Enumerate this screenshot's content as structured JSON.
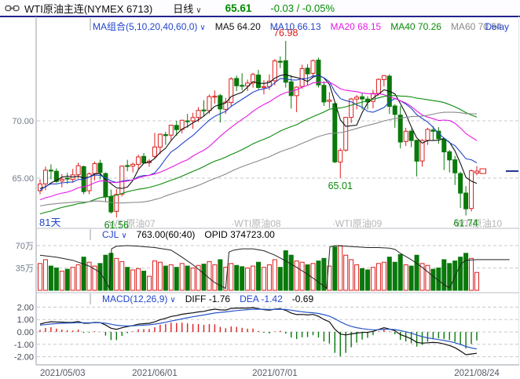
{
  "header": {
    "title": "WTI原油主连(NYMEX 6713)",
    "period": "日线",
    "price": "65.61",
    "change": "-0.03 / -0.05%"
  },
  "icons": {
    "chevron_down": "∨",
    "link": "link-icon"
  },
  "ma_bar": {
    "label": "MA组合(5,10,20,40,60,0)",
    "items": [
      {
        "label": "MA5 64.20",
        "color": "#111111"
      },
      {
        "label": "MA10 66.13",
        "color": "#2244cc"
      },
      {
        "label": "MA20 68.15",
        "color": "#e619e6"
      },
      {
        "label": "MA40 70.26",
        "color": "#0a8a0a"
      },
      {
        "label": "MA60 70.54",
        "color": "#8a8a8a"
      }
    ],
    "delay": "Delay"
  },
  "volume_bar": {
    "label": "CJL",
    "value": "763.00(60:40)",
    "opid": "OPID 374723.00"
  },
  "macd_bar": {
    "label": "MACD(12,26,9)",
    "diff": "DIFF -1.76",
    "dea": "DEA -1.42",
    "bar": "-0.69"
  },
  "chart_data": {
    "type": "candlestick+volume+macd",
    "title": "WTI原油主连(NYMEX 6713) 日线",
    "days_label": "81天",
    "x_ticks": [
      {
        "index": 0,
        "label": "2021/05/03",
        "align": "start"
      },
      {
        "index": 21,
        "label": "2021/06/01",
        "align": "middle"
      },
      {
        "index": 43,
        "label": "2021/07/01",
        "align": "middle"
      },
      {
        "index": 80,
        "label": "2021/08/24",
        "align": "middle"
      }
    ],
    "price_axis": [
      {
        "v": 70,
        "label": "70.00"
      },
      {
        "v": 65,
        "label": "65.00"
      }
    ],
    "volume_axis": [
      {
        "v": 70,
        "label": "70万"
      },
      {
        "v": 35,
        "label": "35万"
      }
    ],
    "macd_axis": [
      {
        "v": 2,
        "label": "2.00"
      },
      {
        "v": 1,
        "label": "1.00"
      },
      {
        "v": 0,
        "label": "0.00"
      },
      {
        "v": -1,
        "label": "-1.00"
      },
      {
        "v": -2,
        "label": "-2.00"
      }
    ],
    "annotations": [
      {
        "index": 45,
        "price": 76.98,
        "label": "76.98",
        "color": "#dc1e1e",
        "place": "above"
      },
      {
        "index": 55,
        "price": 65.01,
        "label": "65.01",
        "color": "#0a8a0a",
        "place": "below"
      },
      {
        "index": 14,
        "price": 61.56,
        "label": "61.56",
        "color": "#0a8a0a",
        "place": "below"
      },
      {
        "index": 78,
        "price": 61.74,
        "label": "61.74",
        "color": "#0a8a0a",
        "place": "below"
      }
    ],
    "watermarks": [
      {
        "index": 12,
        "text": "·WTI原油07"
      },
      {
        "index": 35,
        "text": "·WTI原油08"
      },
      {
        "index": 53.5,
        "text": "·WTI原油09"
      },
      {
        "index": 75.5,
        "text": "·WTI原油10"
      }
    ],
    "last_price": 65.61,
    "ma_lines": [
      {
        "period": 5,
        "color": "#111111"
      },
      {
        "period": 10,
        "color": "#2244cc"
      },
      {
        "period": 20,
        "color": "#e619e6"
      },
      {
        "period": 40,
        "color": "#0a8a0a"
      },
      {
        "period": 60,
        "color": "#8a8a8a"
      }
    ],
    "macd_params": {
      "fast": 12,
      "slow": 26,
      "signal": 9
    },
    "pre_closes": [
      60.0,
      60.7,
      61.5,
      62.1,
      61.8,
      62.5,
      63.2,
      63.5,
      65.2,
      63.7,
      62.6,
      66.0,
      66.5,
      65.8,
      66.4,
      66.1,
      64.6,
      64.8,
      66.0,
      64.6,
      61.6,
      60.0,
      61.4,
      57.8,
      59.2,
      60.5,
      61.4,
      60.9,
      61.5,
      60.6,
      59.3,
      58.7,
      61.4,
      59.6,
      60.0,
      59.3,
      60.2,
      61.4,
      63.1,
      63.5,
      63.1,
      62.1,
      63.4,
      61.4,
      62.4,
      63.1,
      62.2,
      61.4,
      62.1,
      63.0,
      61.9,
      62.1,
      63.5,
      64.7,
      63.9,
      64.5,
      65.0,
      63.9,
      63.6,
      63.5
    ],
    "ohlc": [
      [
        63.9,
        64.9,
        63.6,
        64.49
      ],
      [
        64.5,
        66.0,
        63.95,
        65.69
      ],
      [
        65.7,
        66.2,
        64.9,
        65.63
      ],
      [
        65.6,
        65.85,
        64.6,
        64.71
      ],
      [
        64.75,
        65.35,
        64.2,
        64.9
      ],
      [
        65.0,
        65.45,
        64.5,
        64.92
      ],
      [
        64.9,
        65.8,
        64.6,
        65.28
      ],
      [
        65.3,
        66.35,
        64.95,
        66.08
      ],
      [
        66.0,
        66.1,
        63.6,
        63.82
      ],
      [
        63.9,
        65.5,
        63.6,
        65.37
      ],
      [
        65.4,
        66.45,
        64.8,
        66.27
      ],
      [
        66.3,
        66.6,
        64.9,
        65.49
      ],
      [
        65.4,
        65.5,
        62.95,
        63.36
      ],
      [
        63.4,
        64.0,
        61.9,
        62.05
      ],
      [
        62.1,
        64.05,
        61.56,
        63.58
      ],
      [
        63.6,
        66.1,
        63.4,
        66.05
      ],
      [
        66.1,
        66.6,
        65.6,
        66.07
      ],
      [
        66.05,
        66.35,
        65.5,
        66.21
      ],
      [
        66.2,
        67.05,
        65.8,
        66.85
      ],
      [
        66.9,
        67.2,
        66.3,
        66.32
      ],
      [
        66.35,
        66.65,
        66.0,
        66.48
      ],
      [
        66.9,
        68.95,
        66.7,
        67.72
      ],
      [
        67.7,
        68.9,
        67.1,
        68.83
      ],
      [
        68.8,
        69.05,
        67.9,
        68.71
      ],
      [
        68.75,
        69.65,
        68.3,
        69.62
      ],
      [
        69.6,
        70.0,
        68.7,
        69.23
      ],
      [
        69.25,
        70.1,
        68.9,
        70.05
      ],
      [
        70.0,
        70.6,
        69.4,
        69.96
      ],
      [
        70.0,
        70.7,
        69.3,
        70.29
      ],
      [
        70.3,
        71.2,
        69.9,
        70.91
      ],
      [
        70.95,
        71.8,
        70.4,
        70.88
      ],
      [
        70.9,
        72.3,
        70.6,
        72.12
      ],
      [
        72.1,
        72.65,
        71.5,
        72.15
      ],
      [
        72.2,
        72.35,
        69.85,
        71.04
      ],
      [
        71.0,
        72.0,
        70.6,
        71.64
      ],
      [
        71.6,
        73.8,
        71.2,
        73.66
      ],
      [
        73.7,
        73.95,
        72.6,
        73.06
      ],
      [
        73.1,
        74.15,
        72.65,
        73.08
      ],
      [
        73.05,
        73.6,
        72.6,
        73.3
      ],
      [
        73.3,
        74.2,
        72.9,
        74.05
      ],
      [
        74.0,
        74.45,
        72.75,
        72.91
      ],
      [
        72.9,
        73.55,
        72.3,
        72.98
      ],
      [
        73.0,
        74.05,
        72.7,
        73.47
      ],
      [
        73.5,
        75.4,
        73.1,
        75.23
      ],
      [
        75.2,
        75.62,
        74.6,
        75.16
      ],
      [
        75.25,
        76.98,
        72.9,
        73.37
      ],
      [
        73.4,
        74.0,
        71.07,
        72.2
      ],
      [
        72.2,
        73.0,
        70.76,
        72.94
      ],
      [
        73.0,
        74.9,
        72.8,
        74.56
      ],
      [
        74.6,
        74.95,
        73.1,
        74.1
      ],
      [
        74.15,
        75.35,
        73.8,
        75.25
      ],
      [
        75.3,
        75.52,
        72.9,
        73.13
      ],
      [
        73.1,
        73.45,
        71.3,
        71.65
      ],
      [
        71.7,
        72.5,
        71.1,
        71.81
      ],
      [
        71.5,
        71.6,
        66.3,
        66.42
      ],
      [
        66.4,
        67.6,
        65.01,
        67.42
      ],
      [
        67.45,
        70.35,
        67.3,
        70.3
      ],
      [
        70.3,
        72.0,
        69.8,
        71.91
      ],
      [
        71.9,
        72.25,
        71.0,
        72.07
      ],
      [
        72.1,
        72.4,
        71.0,
        71.91
      ],
      [
        71.9,
        72.15,
        71.0,
        71.65
      ],
      [
        71.7,
        72.7,
        71.1,
        72.39
      ],
      [
        72.4,
        73.7,
        72.2,
        73.62
      ],
      [
        73.6,
        74.0,
        73.0,
        73.95
      ],
      [
        73.9,
        74.05,
        70.6,
        71.26
      ],
      [
        71.3,
        71.45,
        69.4,
        70.56
      ],
      [
        70.5,
        71.3,
        67.6,
        68.15
      ],
      [
        68.2,
        69.4,
        67.8,
        69.09
      ],
      [
        69.1,
        69.3,
        67.7,
        68.28
      ],
      [
        68.3,
        68.35,
        65.15,
        66.48
      ],
      [
        66.5,
        68.4,
        66.0,
        68.29
      ],
      [
        68.3,
        69.4,
        67.9,
        69.25
      ],
      [
        69.2,
        69.55,
        68.3,
        69.09
      ],
      [
        69.1,
        69.45,
        68.0,
        68.44
      ],
      [
        68.4,
        68.5,
        65.7,
        67.29
      ],
      [
        67.3,
        67.45,
        65.5,
        66.59
      ],
      [
        66.6,
        66.95,
        64.4,
        65.46
      ],
      [
        65.4,
        65.55,
        62.4,
        63.69
      ],
      [
        63.7,
        64.3,
        61.74,
        62.32
      ],
      [
        62.35,
        65.75,
        62.1,
        65.64
      ],
      [
        65.45,
        66.05,
        65.25,
        65.61
      ]
    ],
    "volumes": [
      42,
      48,
      38,
      35,
      30,
      33,
      36,
      40,
      52,
      44,
      38,
      42,
      55,
      58,
      50,
      45,
      36,
      32,
      34,
      30,
      22,
      46,
      44,
      38,
      40,
      36,
      42,
      38,
      35,
      39,
      41,
      45,
      40,
      48,
      36,
      42,
      39,
      37,
      35,
      38,
      44,
      36,
      40,
      48,
      36,
      62,
      55,
      46,
      44,
      40,
      42,
      46,
      50,
      38,
      68,
      70,
      55,
      48,
      40,
      34,
      32,
      36,
      42,
      44,
      52,
      44,
      56,
      40,
      38,
      55,
      42,
      39,
      33,
      35,
      48,
      42,
      46,
      52,
      58,
      50,
      28
    ],
    "opid_line": [
      [
        0,
        55
      ],
      [
        3,
        52
      ],
      [
        6,
        47
      ],
      [
        9,
        38
      ],
      [
        11,
        28
      ],
      [
        12.3,
        10
      ],
      [
        12.7,
        3
      ],
      [
        13.1,
        65
      ],
      [
        14,
        69
      ],
      [
        16,
        70
      ],
      [
        18,
        69
      ],
      [
        21,
        67
      ],
      [
        24,
        63
      ],
      [
        26,
        52
      ],
      [
        28,
        40
      ],
      [
        30,
        26
      ],
      [
        32,
        12
      ],
      [
        34,
        3
      ],
      [
        34.6,
        60
      ],
      [
        35.5,
        63
      ],
      [
        37,
        65
      ],
      [
        39,
        65
      ],
      [
        41,
        62
      ],
      [
        43,
        55
      ],
      [
        45,
        46
      ],
      [
        47,
        36
      ],
      [
        49,
        25
      ],
      [
        51,
        13
      ],
      [
        52.5,
        3
      ],
      [
        53.1,
        68
      ],
      [
        54,
        70
      ],
      [
        56,
        69
      ],
      [
        58,
        68
      ],
      [
        60,
        67
      ],
      [
        62,
        67
      ],
      [
        64,
        66
      ],
      [
        65,
        64
      ],
      [
        66,
        58
      ],
      [
        68,
        48
      ],
      [
        70,
        36
      ],
      [
        72,
        22
      ],
      [
        74,
        9
      ],
      [
        74.9,
        4
      ],
      [
        75.4,
        10
      ],
      [
        76.3,
        28
      ],
      [
        77.2,
        42
      ],
      [
        78,
        47
      ],
      [
        80,
        48
      ],
      [
        86,
        48
      ]
    ],
    "colors": {
      "up": "#dc1e1e",
      "down": "#09790b",
      "opid": "#222222",
      "diff": "#111111",
      "dea": "#2856c8",
      "grid": "#c9c9c9",
      "axis_text": "#6f7a88",
      "macd_axis_text": "#444a55",
      "date_text": "#555a66",
      "watermark": "#b5b5b5",
      "frame": "#9aa0a8",
      "separator": "#b8bcc4",
      "marker_navy": "#1f2f8f",
      "days_label_color": "#2244cc"
    }
  }
}
